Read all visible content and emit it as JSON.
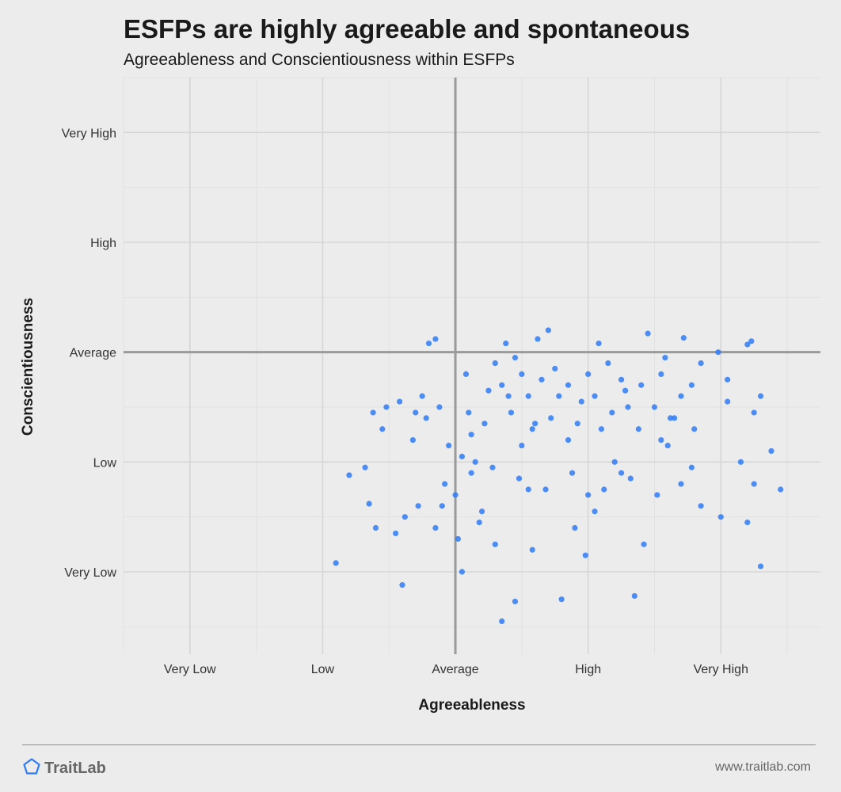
{
  "header": {
    "title": "ESFPs are highly agreeable and spontaneous",
    "subtitle": "Agreeableness and Conscientiousness within ESFPs"
  },
  "footer": {
    "brand": "TraitLab",
    "brand_icon": "pentagon-icon",
    "url": "www.traitlab.com"
  },
  "colors": {
    "background": "#ececec",
    "point": "#2f7cf6",
    "grid_major": "#d6d6d6",
    "grid_minor": "#e2e2e2",
    "reference_line": "#9a9a9a"
  },
  "chart_data": {
    "type": "scatter",
    "xlabel": "Agreeableness",
    "ylabel": "Conscientiousness",
    "x_ticks": [
      {
        "value": 1,
        "label": "Very Low"
      },
      {
        "value": 2,
        "label": "Low"
      },
      {
        "value": 3,
        "label": "Average"
      },
      {
        "value": 4,
        "label": "High"
      },
      {
        "value": 5,
        "label": "Very High"
      }
    ],
    "y_ticks": [
      {
        "value": 1,
        "label": "Very Low"
      },
      {
        "value": 2,
        "label": "Low"
      },
      {
        "value": 3,
        "label": "Average"
      },
      {
        "value": 4,
        "label": "High"
      },
      {
        "value": 5,
        "label": "Very High"
      }
    ],
    "xlim": [
      0.5,
      5.75
    ],
    "ylim": [
      0.25,
      5.5
    ],
    "reference_lines": {
      "x": 3,
      "y": 3
    },
    "grid": true,
    "legend": "none",
    "points": [
      [
        2.1,
        1.08
      ],
      [
        2.2,
        1.88
      ],
      [
        2.32,
        1.95
      ],
      [
        2.35,
        1.62
      ],
      [
        2.4,
        1.4
      ],
      [
        2.45,
        2.3
      ],
      [
        2.48,
        2.5
      ],
      [
        2.38,
        2.45
      ],
      [
        2.55,
        1.35
      ],
      [
        2.6,
        0.88
      ],
      [
        2.62,
        1.5
      ],
      [
        2.7,
        2.45
      ],
      [
        2.75,
        2.6
      ],
      [
        2.85,
        1.4
      ],
      [
        2.9,
        1.6
      ],
      [
        2.95,
        2.15
      ],
      [
        3.0,
        1.7
      ],
      [
        3.05,
        1.0
      ],
      [
        3.02,
        1.3
      ],
      [
        3.1,
        2.45
      ],
      [
        3.12,
        1.9
      ],
      [
        3.15,
        2.0
      ],
      [
        3.2,
        1.55
      ],
      [
        3.3,
        1.25
      ],
      [
        3.35,
        0.55
      ],
      [
        3.4,
        2.6
      ],
      [
        3.45,
        0.73
      ],
      [
        3.5,
        2.15
      ],
      [
        3.55,
        1.75
      ],
      [
        3.6,
        2.35
      ],
      [
        3.7,
        3.2
      ],
      [
        3.8,
        0.75
      ],
      [
        3.85,
        2.2
      ],
      [
        3.9,
        1.4
      ],
      [
        4.0,
        1.7
      ],
      [
        4.05,
        1.55
      ],
      [
        4.1,
        2.3
      ],
      [
        4.15,
        2.9
      ],
      [
        4.2,
        2.0
      ],
      [
        4.25,
        1.9
      ],
      [
        4.35,
        0.78
      ],
      [
        4.5,
        2.5
      ],
      [
        4.55,
        2.2
      ],
      [
        4.6,
        2.15
      ],
      [
        4.65,
        2.4
      ],
      [
        4.7,
        1.8
      ],
      [
        4.8,
        2.3
      ],
      [
        4.85,
        1.6
      ],
      [
        5.0,
        1.5
      ],
      [
        5.05,
        2.55
      ],
      [
        5.15,
        2.0
      ],
      [
        5.2,
        1.45
      ],
      [
        5.25,
        1.8
      ],
      [
        5.3,
        1.05
      ],
      [
        5.38,
        2.1
      ],
      [
        5.45,
        1.75
      ],
      [
        4.08,
        3.08
      ],
      [
        4.45,
        3.17
      ],
      [
        4.72,
        3.13
      ],
      [
        4.98,
        3.0
      ],
      [
        5.2,
        3.07
      ],
      [
        5.23,
        3.1
      ],
      [
        3.38,
        3.08
      ],
      [
        3.62,
        3.12
      ],
      [
        2.8,
        3.08
      ],
      [
        2.85,
        3.12
      ],
      [
        3.3,
        2.9
      ],
      [
        3.35,
        2.7
      ],
      [
        3.5,
        2.8
      ],
      [
        3.55,
        2.6
      ],
      [
        3.65,
        2.75
      ],
      [
        3.75,
        2.85
      ],
      [
        3.85,
        2.7
      ],
      [
        3.95,
        2.55
      ],
      [
        4.0,
        2.8
      ],
      [
        4.05,
        2.6
      ],
      [
        4.25,
        2.75
      ],
      [
        4.3,
        2.5
      ],
      [
        4.4,
        2.7
      ],
      [
        4.55,
        2.8
      ],
      [
        4.7,
        2.6
      ],
      [
        4.85,
        2.9
      ],
      [
        5.05,
        2.75
      ],
      [
        5.25,
        2.45
      ],
      [
        5.3,
        2.6
      ],
      [
        3.12,
        2.25
      ],
      [
        3.22,
        2.35
      ],
      [
        3.42,
        2.45
      ],
      [
        3.58,
        2.3
      ],
      [
        3.72,
        2.4
      ],
      [
        3.92,
        2.35
      ],
      [
        4.18,
        2.45
      ],
      [
        4.38,
        2.3
      ],
      [
        4.62,
        2.4
      ],
      [
        2.68,
        2.2
      ],
      [
        2.78,
        2.4
      ],
      [
        2.58,
        2.55
      ],
      [
        2.88,
        2.5
      ],
      [
        3.05,
        2.05
      ],
      [
        3.28,
        1.95
      ],
      [
        3.48,
        1.85
      ],
      [
        3.68,
        1.75
      ],
      [
        3.88,
        1.9
      ],
      [
        4.12,
        1.75
      ],
      [
        4.32,
        1.85
      ],
      [
        4.52,
        1.7
      ],
      [
        4.78,
        1.95
      ],
      [
        3.25,
        2.65
      ],
      [
        3.78,
        2.6
      ],
      [
        4.28,
        2.65
      ],
      [
        4.78,
        2.7
      ],
      [
        3.18,
        1.45
      ],
      [
        3.58,
        1.2
      ],
      [
        3.98,
        1.15
      ],
      [
        4.42,
        1.25
      ],
      [
        2.72,
        1.6
      ],
      [
        2.92,
        1.8
      ],
      [
        3.08,
        2.8
      ],
      [
        3.45,
        2.95
      ],
      [
        4.58,
        2.95
      ]
    ]
  }
}
